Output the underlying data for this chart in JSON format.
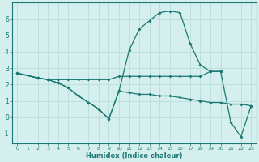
{
  "xlabel": "Humidex (Indice chaleur)",
  "background_color": "#d4efed",
  "grid_color": "#b8deda",
  "line_color": "#1a7870",
  "xlim": [
    -0.5,
    23.5
  ],
  "ylim": [
    -1.6,
    7.0
  ],
  "yticks": [
    -1,
    0,
    1,
    2,
    3,
    4,
    5,
    6
  ],
  "xticks": [
    0,
    1,
    2,
    3,
    4,
    5,
    6,
    7,
    8,
    9,
    10,
    11,
    12,
    13,
    14,
    15,
    16,
    17,
    18,
    19,
    20,
    21,
    22,
    23
  ],
  "line1_descend": [
    [
      0,
      2.7
    ],
    [
      2,
      2.4
    ],
    [
      3,
      2.3
    ],
    [
      4,
      2.1
    ],
    [
      5,
      1.8
    ],
    [
      6,
      1.3
    ],
    [
      7,
      0.9
    ],
    [
      8,
      0.5
    ],
    [
      9,
      -0.1
    ],
    [
      10,
      1.6
    ]
  ],
  "line2_flat": [
    [
      0,
      2.7
    ],
    [
      2,
      2.4
    ],
    [
      3,
      2.3
    ],
    [
      4,
      2.3
    ],
    [
      5,
      2.3
    ],
    [
      6,
      2.3
    ],
    [
      7,
      2.3
    ],
    [
      8,
      2.3
    ],
    [
      9,
      2.3
    ],
    [
      10,
      2.5
    ],
    [
      11,
      2.5
    ],
    [
      12,
      2.5
    ],
    [
      13,
      2.5
    ],
    [
      14,
      2.5
    ],
    [
      15,
      2.5
    ],
    [
      16,
      2.5
    ],
    [
      17,
      2.5
    ],
    [
      18,
      2.5
    ],
    [
      19,
      2.8
    ],
    [
      20,
      2.8
    ]
  ],
  "line3_peak": [
    [
      10,
      1.6
    ],
    [
      11,
      4.1
    ],
    [
      12,
      5.4
    ],
    [
      13,
      5.9
    ],
    [
      14,
      6.4
    ],
    [
      15,
      6.5
    ],
    [
      16,
      6.4
    ],
    [
      17,
      4.5
    ],
    [
      18,
      3.2
    ],
    [
      19,
      2.8
    ],
    [
      20,
      2.8
    ]
  ],
  "line4_decline": [
    [
      0,
      2.7
    ],
    [
      2,
      2.4
    ],
    [
      3,
      2.3
    ],
    [
      4,
      2.1
    ],
    [
      5,
      1.8
    ],
    [
      6,
      1.3
    ],
    [
      7,
      0.9
    ],
    [
      8,
      0.5
    ],
    [
      9,
      -0.1
    ],
    [
      10,
      1.6
    ],
    [
      11,
      1.5
    ],
    [
      12,
      1.4
    ],
    [
      13,
      1.4
    ],
    [
      14,
      1.3
    ],
    [
      15,
      1.3
    ],
    [
      16,
      1.2
    ],
    [
      17,
      1.1
    ],
    [
      18,
      1.0
    ],
    [
      19,
      0.9
    ],
    [
      20,
      0.9
    ],
    [
      21,
      0.8
    ],
    [
      22,
      0.8
    ],
    [
      23,
      0.7
    ]
  ],
  "line5_end": [
    [
      20,
      2.8
    ],
    [
      21,
      -0.3
    ],
    [
      22,
      -1.2
    ],
    [
      23,
      0.7
    ]
  ]
}
